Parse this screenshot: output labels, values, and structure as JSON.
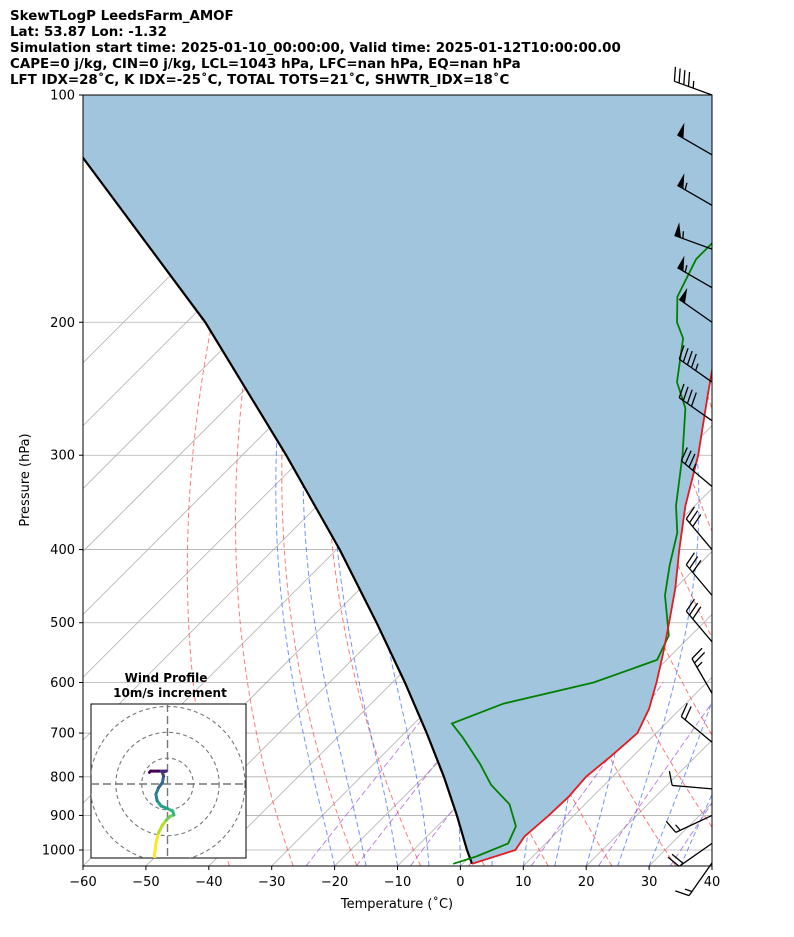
{
  "header": {
    "lines": [
      "SkewTLogP LeedsFarm_AMOF",
      "Lat: 53.87   Lon: -1.32",
      "Simulation start time: 2025-01-10_00:00:00, Valid time: 2025-01-12T10:00:00.00",
      "CAPE=0 j/kg, CIN=0 j/kg, LCL=1043 hPa, LFC=nan hPa, EQ=nan hPa",
      "LFT IDX=28$^\\circ$C, K IDX=-25$^\\circ$C, TOTAL TOTS=21$^\\circ$C, SHWTR_IDX=18$^\\circ$C"
    ]
  },
  "chart_data": [
    {
      "type": "line",
      "title": "",
      "xlabel": "Temperature ($^\\circ$C)",
      "ylabel": "Pressure (hPa)",
      "xlim": [
        -60,
        40
      ],
      "ylim": [
        1050,
        100
      ],
      "yscale": "log",
      "skew": "temperature isotherms skewed 45 degrees",
      "x_ticks": [
        "−60",
        "−50",
        "−40",
        "−30",
        "−20",
        "−10",
        "0",
        "10",
        "20",
        "30",
        "40"
      ],
      "y_ticks": [
        "100",
        "200",
        "300",
        "400",
        "500",
        "600",
        "700",
        "800",
        "900",
        "1000"
      ],
      "grid": true,
      "series": [
        {
          "color": "#e41a1c",
          "points_T_at_p": [
            [
              1043,
              1.5
            ],
            [
              1000,
              6.2
            ],
            [
              960,
              5.5
            ],
            [
              900,
              6.0
            ],
            [
              850,
              6.2
            ],
            [
              800,
              5.8
            ],
            [
              750,
              6.5
            ],
            [
              700,
              7.0
            ],
            [
              650,
              5.0
            ],
            [
              600,
              2.0
            ],
            [
              550,
              -1.5
            ],
            [
              500,
              -5.5
            ],
            [
              450,
              -10.0
            ],
            [
              400,
              -15.5
            ],
            [
              350,
              -21.5
            ],
            [
              300,
              -27.5
            ],
            [
              250,
              -35.5
            ],
            [
              220,
              -41.0
            ],
            [
              200,
              -46.0
            ],
            [
              190,
              -49.0
            ],
            [
              175,
              -49.5
            ],
            [
              160,
              -50.0
            ],
            [
              148,
              -51.5
            ],
            [
              140,
              -52.5
            ],
            [
              130,
              -51.5
            ],
            [
              120,
              -52.5
            ],
            [
              110,
              -55.0
            ],
            [
              100,
              -57.0
            ]
          ]
        },
        {
          "color": "#008000",
          "points_T_at_p": [
            [
              1043,
              -1.5
            ],
            [
              1020,
              1.0
            ],
            [
              980,
              4.0
            ],
            [
              930,
              2.5
            ],
            [
              870,
              -2.0
            ],
            [
              820,
              -8.0
            ],
            [
              770,
              -13.0
            ],
            [
              710,
              -20.0
            ],
            [
              680,
              -24.0
            ],
            [
              640,
              -19.0
            ],
            [
              600,
              -8.0
            ],
            [
              560,
              -1.5
            ],
            [
              520,
              -3.5
            ],
            [
              460,
              -10.5
            ],
            [
              420,
              -14.5
            ],
            [
              380,
              -18.5
            ],
            [
              350,
              -23.0
            ],
            [
              300,
              -30.0
            ],
            [
              260,
              -37.0
            ],
            [
              240,
              -42.5
            ],
            [
              210,
              -48.5
            ],
            [
              200,
              -52.0
            ],
            [
              185,
              -56.0
            ],
            [
              165,
              -59.0
            ],
            [
              150,
              -59.0
            ],
            [
              137,
              -58.5
            ],
            [
              128,
              -62.5
            ],
            [
              120,
              -65.5
            ],
            [
              110,
              -65.5
            ],
            [
              100,
              -66.0
            ]
          ]
        },
        {
          "color": "#000000",
          "points_T_at_p": [
            [
              1043,
              1.5
            ],
            [
              1000,
              -1.5
            ],
            [
              900,
              -8.6
            ],
            [
              800,
              -16.8
            ],
            [
              700,
              -26.5
            ],
            [
              600,
              -38.0
            ],
            [
              500,
              -52.0
            ],
            [
              400,
              -69.5
            ],
            [
              300,
              -93.0
            ],
            [
              200,
              -127.0
            ],
            [
              100,
              -190.0
            ]
          ]
        }
      ],
      "shading": {
        "color": "#a2c5de",
        "between": "parcel profile and temperature"
      },
      "dry_adiabats_color": "#ff4d4d",
      "moist_adiabats_color": "#3366ff",
      "mixing_ratio_color": "#9933cc",
      "isotherm_color": "#b0b0b0"
    },
    {
      "type": "line",
      "title": "Wind Profile",
      "subtitle": "10m/s increment",
      "xlim": [
        -30,
        30
      ],
      "ylim": [
        -30,
        30
      ],
      "rings_ms": [
        10,
        20,
        30
      ],
      "hodograph_uv": [
        [
          -5.0,
          -31.0
        ],
        [
          -5.0,
          -27.0
        ],
        [
          -4.5,
          -23.0
        ],
        [
          -3.5,
          -19.0
        ],
        [
          -2.0,
          -16.0
        ],
        [
          -0.5,
          -14.0
        ],
        [
          1.0,
          -12.5
        ],
        [
          2.5,
          -12.0
        ],
        [
          2.0,
          -10.5
        ],
        [
          0.0,
          -9.5
        ],
        [
          -2.5,
          -8.5
        ],
        [
          -4.0,
          -6.5
        ],
        [
          -4.5,
          -4.0
        ],
        [
          -3.5,
          -1.5
        ],
        [
          -2.0,
          0.5
        ],
        [
          -1.5,
          3.0
        ],
        [
          -2.0,
          4.5
        ],
        [
          -0.5,
          5.0
        ],
        [
          -1.0,
          5.0
        ],
        [
          -3.5,
          5.0
        ],
        [
          -6.5,
          5.0
        ],
        [
          -7.0,
          4.5
        ]
      ],
      "colormap": "viridis (purple aloft, yellow at surface)"
    }
  ],
  "wind_barbs_kt": [
    {
      "p": 100,
      "speed": 45,
      "dir": 290
    },
    {
      "p": 120,
      "speed": 50,
      "dir": 300
    },
    {
      "p": 140,
      "speed": 55,
      "dir": 300
    },
    {
      "p": 160,
      "speed": 55,
      "dir": 290
    },
    {
      "p": 180,
      "speed": 55,
      "dir": 300
    },
    {
      "p": 200,
      "speed": 50,
      "dir": 305
    },
    {
      "p": 240,
      "speed": 45,
      "dir": 305
    },
    {
      "p": 270,
      "speed": 40,
      "dir": 305
    },
    {
      "p": 330,
      "speed": 35,
      "dir": 310
    },
    {
      "p": 400,
      "speed": 30,
      "dir": 320
    },
    {
      "p": 460,
      "speed": 30,
      "dir": 320
    },
    {
      "p": 530,
      "speed": 30,
      "dir": 320
    },
    {
      "p": 620,
      "speed": 25,
      "dir": 330
    },
    {
      "p": 720,
      "speed": 20,
      "dir": 310
    },
    {
      "p": 830,
      "speed": 10,
      "dir": 275
    },
    {
      "p": 900,
      "speed": 15,
      "dir": 245
    },
    {
      "p": 980,
      "speed": 20,
      "dir": 235
    },
    {
      "p": 1040,
      "speed": 15,
      "dir": 215
    }
  ]
}
